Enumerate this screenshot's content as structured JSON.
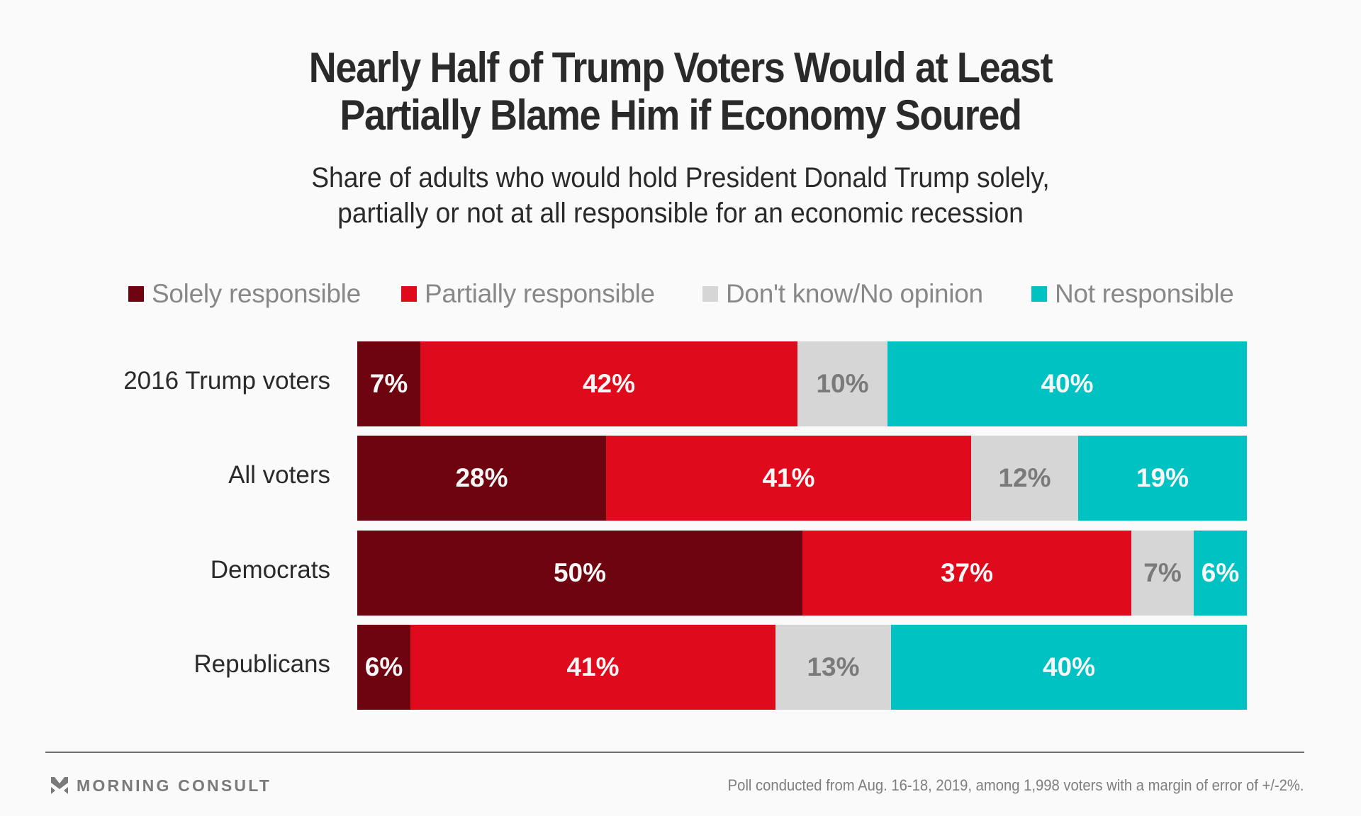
{
  "header": {
    "title_lines": [
      "Nearly Half of Trump Voters Would at Least",
      "Partially Blame Him if Economy Soured"
    ],
    "subtitle_lines": [
      "Share of adults who would hold President Donald Trump solely,",
      "partially or not at all responsible for an economic recession"
    ]
  },
  "colors": {
    "solely": "#6d0410",
    "partially": "#df0a1b",
    "dont_know": "#d6d6d6",
    "not_responsible": "#00c2c3",
    "label_light": "#f7f7f7",
    "label_dark": "#7a7a7a"
  },
  "chart_data": {
    "type": "bar",
    "orientation": "horizontal",
    "stacked": true,
    "normalized": true,
    "title": "Nearly Half of Trump Voters Would at Least Partially Blame Him if Economy Soured",
    "subtitle": "Share of adults who would hold President Donald Trump solely, partially or not at all responsible for an economic recession",
    "xlabel": "",
    "ylabel": "",
    "unit": "%",
    "grid": false,
    "legend_position": "top",
    "categories": [
      "2016 Trump voters",
      "All voters",
      "Democrats",
      "Republicans"
    ],
    "series": [
      {
        "key": "solely",
        "name": "Solely responsible",
        "values": [
          7,
          28,
          50,
          6
        ]
      },
      {
        "key": "partially",
        "name": "Partially responsible",
        "values": [
          42,
          41,
          37,
          41
        ]
      },
      {
        "key": "dont_know",
        "name": "Don't know/No opinion",
        "values": [
          10,
          12,
          7,
          13
        ]
      },
      {
        "key": "not_responsible",
        "name": "Not responsible",
        "values": [
          40,
          19,
          6,
          40
        ]
      }
    ],
    "data_labels": [
      [
        "7%",
        "42%",
        "10%",
        "40%"
      ],
      [
        "28%",
        "41%",
        "12%",
        "19%"
      ],
      [
        "50%",
        "37%",
        "7%",
        "6%"
      ],
      [
        "6%",
        "41%",
        "13%",
        "40%"
      ]
    ]
  },
  "footer": {
    "brand": "MORNING CONSULT",
    "logo_icon": "morning-consult-chevron-icon",
    "note": "Poll conducted from Aug. 16-18, 2019, among 1,998 voters with a margin of error of +/-2%."
  }
}
